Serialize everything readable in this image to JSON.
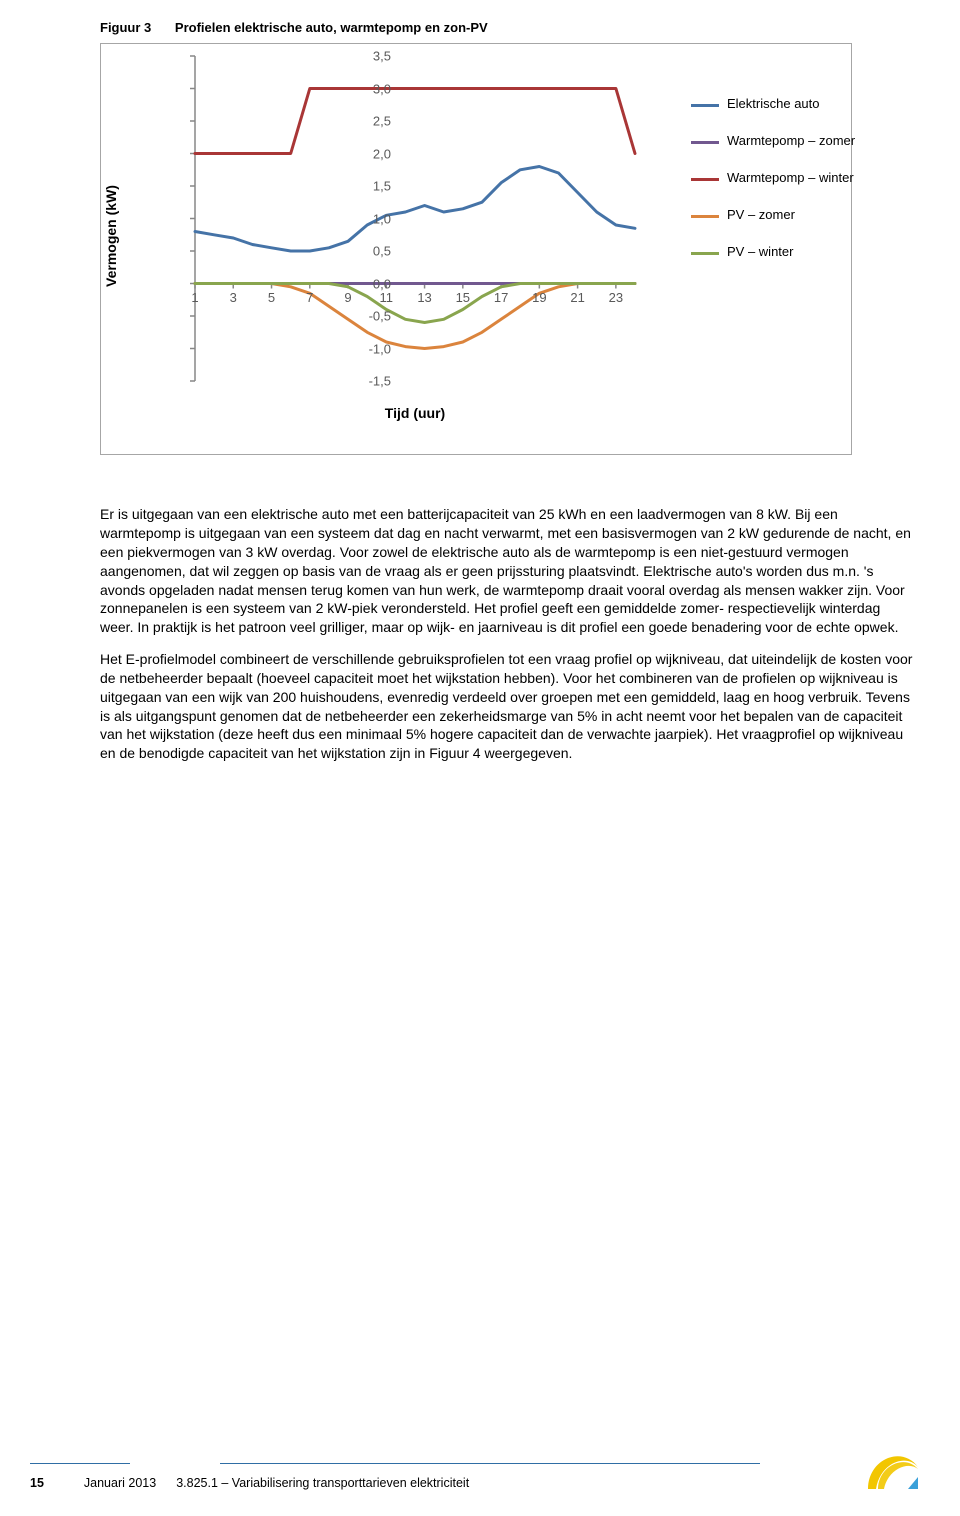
{
  "figure": {
    "number": "Figuur 3",
    "title": "Profielen elektrische auto, warmtepomp en zon-PV"
  },
  "chart": {
    "type": "line",
    "y_axis_title": "Vermogen (kW)",
    "x_axis_title": "Tijd (uur)",
    "yticks": [
      "3,5",
      "3,0",
      "2,5",
      "2,0",
      "1,5",
      "1,0",
      "0,5",
      "0,0",
      "-0,5",
      "-1,0",
      "-1,5"
    ],
    "ytick_values": [
      3.5,
      3.0,
      2.5,
      2.0,
      1.5,
      1.0,
      0.5,
      0.0,
      -0.5,
      -1.0,
      -1.5
    ],
    "xticks": [
      "1",
      "3",
      "5",
      "7",
      "9",
      "11",
      "13",
      "15",
      "17",
      "19",
      "21",
      "23"
    ],
    "xtick_values": [
      1,
      3,
      5,
      7,
      9,
      11,
      13,
      15,
      17,
      19,
      21,
      23
    ],
    "xlim": [
      1,
      24
    ],
    "ylim": [
      -1.5,
      3.5
    ],
    "axis_color": "#878787",
    "tick_font_color": "#595959",
    "tick_font_size": 13,
    "title_font_size": 14,
    "background_color": "#ffffff",
    "line_width": 3,
    "series": [
      {
        "name": "Elektrische auto",
        "color": "#4573a7",
        "x": [
          1,
          2,
          3,
          4,
          5,
          6,
          7,
          8,
          9,
          10,
          11,
          12,
          13,
          14,
          15,
          16,
          17,
          18,
          19,
          20,
          21,
          22,
          23,
          24
        ],
        "y": [
          0.8,
          0.75,
          0.7,
          0.6,
          0.55,
          0.5,
          0.5,
          0.55,
          0.65,
          0.9,
          1.05,
          1.1,
          1.2,
          1.1,
          1.15,
          1.25,
          1.55,
          1.75,
          1.8,
          1.7,
          1.4,
          1.1,
          0.9,
          0.85
        ]
      },
      {
        "name": "Warmtepomp – zomer",
        "color": "#71588f",
        "x": [
          1,
          2,
          3,
          4,
          5,
          6,
          7,
          8,
          9,
          10,
          11,
          12,
          13,
          14,
          15,
          16,
          17,
          18,
          19,
          20,
          21,
          22,
          23,
          24
        ],
        "y": [
          0,
          0,
          0,
          0,
          0,
          0,
          0,
          0,
          0,
          0,
          0,
          0,
          0,
          0,
          0,
          0,
          0,
          0,
          0,
          0,
          0,
          0,
          0,
          0
        ]
      },
      {
        "name": "Warmtepomp – winter",
        "color": "#a93636",
        "x": [
          1,
          2,
          3,
          4,
          5,
          6,
          7,
          8,
          9,
          10,
          11,
          12,
          13,
          14,
          15,
          16,
          17,
          18,
          19,
          20,
          21,
          22,
          23,
          24
        ],
        "y": [
          2.0,
          2.0,
          2.0,
          2.0,
          2.0,
          2.0,
          3.0,
          3.0,
          3.0,
          3.0,
          3.0,
          3.0,
          3.0,
          3.0,
          3.0,
          3.0,
          3.0,
          3.0,
          3.0,
          3.0,
          3.0,
          3.0,
          3.0,
          2.0
        ]
      },
      {
        "name": "PV – zomer",
        "color": "#db843d",
        "x": [
          1,
          2,
          3,
          4,
          5,
          6,
          7,
          8,
          9,
          10,
          11,
          12,
          13,
          14,
          15,
          16,
          17,
          18,
          19,
          20,
          21,
          22,
          23,
          24
        ],
        "y": [
          0,
          0,
          0,
          0,
          0,
          -0.05,
          -0.15,
          -0.35,
          -0.55,
          -0.75,
          -0.9,
          -0.97,
          -1.0,
          -0.97,
          -0.9,
          -0.75,
          -0.55,
          -0.35,
          -0.15,
          -0.05,
          0,
          0,
          0,
          0
        ]
      },
      {
        "name": "PV – winter",
        "color": "#89a54e",
        "x": [
          1,
          2,
          3,
          4,
          5,
          6,
          7,
          8,
          9,
          10,
          11,
          12,
          13,
          14,
          15,
          16,
          17,
          18,
          19,
          20,
          21,
          22,
          23,
          24
        ],
        "y": [
          0,
          0,
          0,
          0,
          0,
          0,
          0,
          0,
          -0.05,
          -0.2,
          -0.4,
          -0.55,
          -0.6,
          -0.55,
          -0.4,
          -0.2,
          -0.05,
          0,
          0,
          0,
          0,
          0,
          0,
          0
        ]
      }
    ],
    "legend": [
      {
        "label": "Elektrische auto",
        "color": "#4573a7"
      },
      {
        "label": "Warmtepomp – zomer",
        "color": "#71588f"
      },
      {
        "label": "Warmtepomp – winter",
        "color": "#a93636"
      },
      {
        "label": "PV – zomer",
        "color": "#db843d"
      },
      {
        "label": "PV – winter",
        "color": "#89a54e"
      }
    ]
  },
  "paragraphs": {
    "p1": "Er is uitgegaan van een elektrische auto met een batterijcapaciteit van 25 kWh en een laadvermogen van 8 kW. Bij een warmtepomp is uitgegaan van een systeem dat dag en nacht verwarmt, met een basisvermogen van 2 kW gedurende de nacht, en een piekvermogen van 3 kW overdag. Voor zowel de elektrische auto als de warmtepomp is een niet-gestuurd vermogen aangenomen, dat wil zeggen op basis van de vraag als er geen prijssturing plaatsvindt. Elektrische auto's worden dus m.n. 's avonds opgeladen nadat mensen terug komen van hun werk, de warmtepomp draait vooral overdag als mensen wakker zijn. Voor zonnepanelen is een systeem van 2 kW-piek verondersteld. Het profiel geeft een gemiddelde zomer- respectievelijk winterdag weer. In praktijk is het patroon veel grilliger, maar op wijk- en jaarniveau is dit profiel een goede benadering voor de echte opwek.",
    "p2": "Het E-profielmodel combineert de verschillende gebruiksprofielen tot een vraag profiel op wijkniveau, dat uiteindelijk de kosten voor de netbeheerder bepaalt (hoeveel capaciteit moet het wijkstation hebben). Voor het combineren van de profielen op wijkniveau is uitgegaan van een wijk van 200 huishoudens, evenredig verdeeld over groepen met een gemiddeld, laag en hoog verbruik. Tevens is als uitgangspunt genomen dat de netbeheerder een zekerheidsmarge van 5% in acht neemt voor het bepalen van de capaciteit van het wijkstation (deze heeft dus een minimaal 5% hogere capaciteit dan de verwachte jaarpiek). Het vraagprofiel op wijkniveau en de benodigde capaciteit van het wijkstation zijn in Figuur 4 weergegeven."
  },
  "footer": {
    "page_number": "15",
    "date": "Januari 2013",
    "doc_ref": "3.825.1 – Variabilisering transporttarieven elektriciteit",
    "rule_color": "#2f6ea5",
    "logo_colors": {
      "yellow": "#f2c600",
      "blue": "#3aa0d9"
    }
  }
}
